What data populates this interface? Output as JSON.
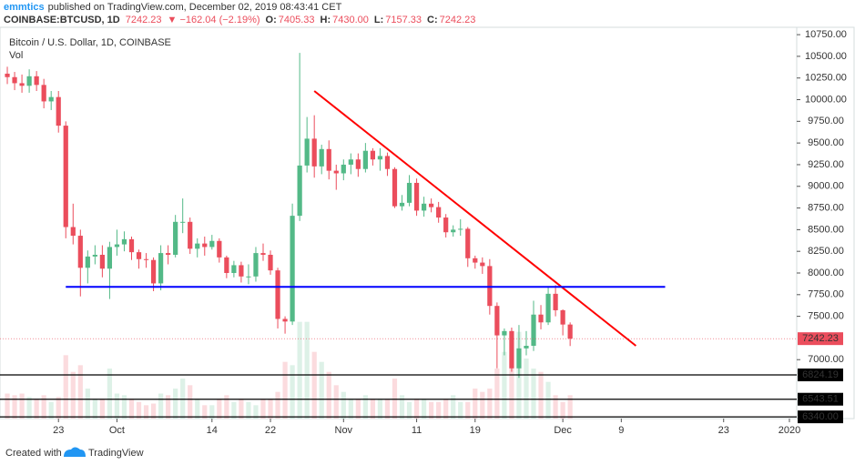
{
  "header": {
    "publisher": "emmtics",
    "published_text": "published on TradingView.com, December 02, 2019 08:43:41 CET",
    "symbol": "COINBASE:BTCUSD, 1D",
    "last": "7242.23",
    "change": "▼ −162.04 (−2.19%)",
    "ohlc": [
      {
        "key": "O:",
        "value": "7405.33"
      },
      {
        "key": "H:",
        "value": "7430.00"
      },
      {
        "key": "L:",
        "value": "7157.33"
      },
      {
        "key": "C:",
        "value": "7242.23"
      }
    ]
  },
  "chart_data": {
    "type": "candlestick",
    "title": "Bitcoin / U.S. Dollar, 1D, COINBASE",
    "volume_label": "Vol",
    "up_color": "#53b987",
    "down_color": "#eb4d5c",
    "x": [
      "2019-09-16",
      "2019-09-17",
      "2019-09-18",
      "2019-09-19",
      "2019-09-20",
      "2019-09-21",
      "2019-09-22",
      "2019-09-23",
      "2019-09-24",
      "2019-09-25",
      "2019-09-26",
      "2019-09-27",
      "2019-09-28",
      "2019-09-29",
      "2019-09-30",
      "2019-10-01",
      "2019-10-02",
      "2019-10-03",
      "2019-10-04",
      "2019-10-05",
      "2019-10-06",
      "2019-10-07",
      "2019-10-08",
      "2019-10-09",
      "2019-10-10",
      "2019-10-11",
      "2019-10-12",
      "2019-10-13",
      "2019-10-14",
      "2019-10-15",
      "2019-10-16",
      "2019-10-17",
      "2019-10-18",
      "2019-10-19",
      "2019-10-20",
      "2019-10-21",
      "2019-10-22",
      "2019-10-23",
      "2019-10-24",
      "2019-10-25",
      "2019-10-26",
      "2019-10-27",
      "2019-10-28",
      "2019-10-29",
      "2019-10-30",
      "2019-10-31",
      "2019-11-01",
      "2019-11-02",
      "2019-11-03",
      "2019-11-04",
      "2019-11-05",
      "2019-11-06",
      "2019-11-07",
      "2019-11-08",
      "2019-11-09",
      "2019-11-10",
      "2019-11-11",
      "2019-11-12",
      "2019-11-13",
      "2019-11-14",
      "2019-11-15",
      "2019-11-16",
      "2019-11-17",
      "2019-11-18",
      "2019-11-19",
      "2019-11-20",
      "2019-11-21",
      "2019-11-22",
      "2019-11-23",
      "2019-11-24",
      "2019-11-25",
      "2019-11-26",
      "2019-11-27",
      "2019-11-28",
      "2019-11-29",
      "2019-11-30",
      "2019-12-01",
      "2019-12-02"
    ],
    "open": [
      10300,
      10260,
      10190,
      10160,
      10270,
      10170,
      9980,
      10030,
      9700,
      8530,
      8430,
      8060,
      8190,
      8210,
      8050,
      8300,
      8330,
      8390,
      8240,
      8160,
      8150,
      7880,
      8230,
      8210,
      8590,
      8590,
      8280,
      8340,
      8300,
      8370,
      8180,
      8000,
      8090,
      7960,
      7960,
      8230,
      8210,
      8030,
      7470,
      7440,
      8660,
      9240,
      9550,
      9230,
      9430,
      9180,
      9150,
      9250,
      9310,
      9200,
      9410,
      9310,
      9350,
      9200,
      8770,
      8810,
      9040,
      8720,
      8800,
      8760,
      8640,
      8470,
      8500,
      8510,
      8170,
      8120,
      8080,
      7620,
      7280,
      7330,
      6900,
      7130,
      7160,
      7520,
      7430,
      7760,
      7570,
      7405.33
    ],
    "high": [
      10380,
      10320,
      10290,
      10350,
      10330,
      10240,
      10100,
      10100,
      9750,
      8800,
      8500,
      8260,
      8320,
      8320,
      8360,
      8500,
      8480,
      8420,
      8270,
      8230,
      8180,
      8320,
      8320,
      8670,
      8860,
      8640,
      8400,
      8420,
      8440,
      8400,
      8200,
      8140,
      8130,
      8100,
      8300,
      8340,
      8260,
      8060,
      7500,
      8800,
      10540,
      9800,
      9820,
      9480,
      9530,
      9250,
      9310,
      9380,
      9380,
      9500,
      9440,
      9440,
      9390,
      9220,
      8900,
      9130,
      9090,
      8880,
      8860,
      8820,
      8680,
      8550,
      8620,
      8530,
      8200,
      8180,
      8160,
      7660,
      7360,
      7370,
      7400,
      7330,
      7680,
      7630,
      7840,
      7860,
      7580,
      7430
    ],
    "low": [
      10180,
      10110,
      10080,
      10080,
      10100,
      9900,
      9880,
      9620,
      8400,
      8330,
      7730,
      7880,
      8100,
      7950,
      7700,
      8200,
      8250,
      8150,
      8050,
      8060,
      7790,
      7800,
      8100,
      8180,
      8460,
      8220,
      8180,
      8200,
      8270,
      8120,
      7940,
      7950,
      7890,
      7870,
      7900,
      8140,
      7980,
      7360,
      7300,
      7400,
      8600,
      9160,
      9100,
      9140,
      9080,
      8960,
      9070,
      9140,
      9110,
      9160,
      9240,
      9180,
      9120,
      8750,
      8720,
      8770,
      8660,
      8650,
      8700,
      8580,
      8410,
      8420,
      8430,
      8070,
      8050,
      7990,
      7520,
      6900,
      7050,
      6860,
      6790,
      7050,
      7100,
      7350,
      7400,
      7500,
      7280,
      7157.33
    ],
    "close": [
      10260,
      10190,
      10160,
      10270,
      10170,
      9980,
      10030,
      9700,
      8530,
      8430,
      8060,
      8190,
      8210,
      8050,
      8300,
      8330,
      8390,
      8240,
      8160,
      8150,
      7880,
      8230,
      8210,
      8590,
      8590,
      8280,
      8340,
      8300,
      8370,
      8180,
      8000,
      8090,
      7960,
      7960,
      8230,
      8210,
      8030,
      7470,
      7440,
      8660,
      9240,
      9550,
      9230,
      9430,
      9180,
      9150,
      9250,
      9310,
      9200,
      9410,
      9310,
      9350,
      9200,
      8770,
      8810,
      9040,
      8720,
      8800,
      8760,
      8640,
      8470,
      8500,
      8510,
      8170,
      8120,
      8080,
      7620,
      7280,
      7330,
      6900,
      7130,
      7160,
      7520,
      7430,
      7760,
      7570,
      7405.33,
      7242.23
    ],
    "volume": [
      15,
      14,
      15,
      13,
      12,
      14,
      10,
      13,
      38,
      28,
      32,
      18,
      12,
      12,
      30,
      15,
      14,
      12,
      10,
      8,
      9,
      15,
      14,
      18,
      24,
      20,
      12,
      8,
      8,
      12,
      14,
      10,
      12,
      10,
      8,
      12,
      12,
      16,
      34,
      32,
      58,
      58,
      40,
      34,
      28,
      20,
      16,
      12,
      12,
      14,
      12,
      12,
      12,
      24,
      14,
      10,
      12,
      12,
      10,
      10,
      12,
      14,
      10,
      10,
      18,
      16,
      18,
      30,
      40,
      38,
      52,
      36,
      30,
      28,
      22,
      14,
      10,
      14
    ],
    "vlim": [
      0,
      60
    ],
    "xlim": [
      "2019-09-15",
      "2020-01-02"
    ],
    "xticks": [
      {
        "value": "2019-09-23",
        "label": "23"
      },
      {
        "value": "2019-10-01",
        "label": "Oct"
      },
      {
        "value": "2019-10-14",
        "label": "14"
      },
      {
        "value": "2019-10-22",
        "label": "22"
      },
      {
        "value": "2019-11-01",
        "label": "Nov"
      },
      {
        "value": "2019-11-11",
        "label": "11"
      },
      {
        "value": "2019-11-19",
        "label": "19"
      },
      {
        "value": "2019-12-01",
        "label": "Dec"
      },
      {
        "value": "2019-12-09",
        "label": "9"
      },
      {
        "value": "2019-12-23",
        "label": "23"
      },
      {
        "value": "2020-01-01",
        "label": "2020"
      }
    ],
    "ylim": [
      6320,
      10835
    ],
    "yticks": [
      {
        "value": 10750,
        "label": "10750.00"
      },
      {
        "value": 10500,
        "label": "10500.00"
      },
      {
        "value": 10250,
        "label": "10250.00"
      },
      {
        "value": 10000,
        "label": "10000.00"
      },
      {
        "value": 9750,
        "label": "9750.00"
      },
      {
        "value": 9500,
        "label": "9500.00"
      },
      {
        "value": 9250,
        "label": "9250.00"
      },
      {
        "value": 9000,
        "label": "9000.00"
      },
      {
        "value": 8750,
        "label": "8750.00"
      },
      {
        "value": 8500,
        "label": "8500.00"
      },
      {
        "value": 8250,
        "label": "8250.00"
      },
      {
        "value": 8000,
        "label": "8000.00"
      },
      {
        "value": 7750,
        "label": "7750.00"
      },
      {
        "value": 7500,
        "label": "7500.00"
      },
      {
        "value": 7000,
        "label": "7000.00"
      }
    ],
    "grid": false,
    "last_price": {
      "value": 7242.23,
      "label": "7242.23",
      "color": "#eb4d5c"
    },
    "hlines": [
      {
        "value": 6824.19,
        "label": "6824.19",
        "color": "#000000"
      },
      {
        "value": 6543.51,
        "label": "6543.51",
        "color": "#000000"
      },
      {
        "value": 6340,
        "label": "6340.00",
        "color": "#000000"
      }
    ],
    "lines": [
      {
        "color": "#ff0000",
        "points": [
          {
            "x": "2019-10-28",
            "y": 10100
          },
          {
            "x": "2019-12-11",
            "y": 7160
          }
        ]
      },
      {
        "color": "#0000ff",
        "points": [
          {
            "x": "2019-09-24",
            "y": 7840
          },
          {
            "x": "2019-12-15",
            "y": 7840
          }
        ]
      }
    ]
  },
  "footer": {
    "created": "Created with",
    "brand": "TradingView"
  }
}
